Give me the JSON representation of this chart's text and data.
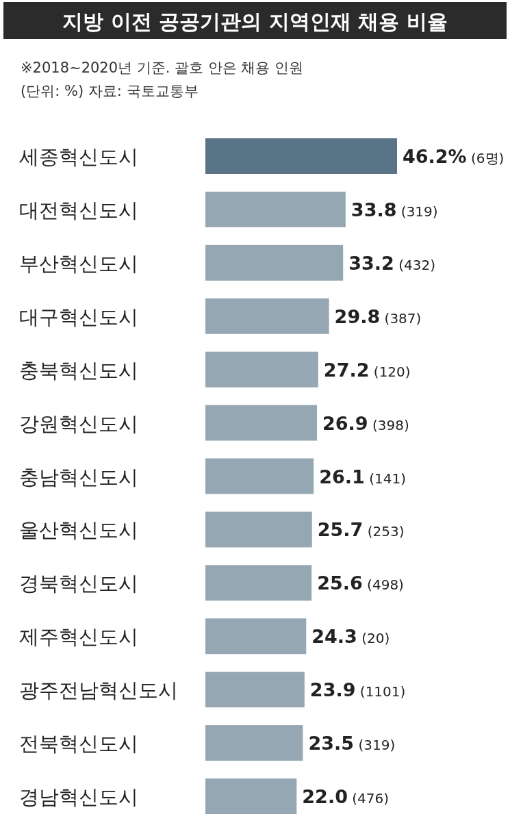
{
  "chart_data": {
    "type": "bar",
    "orientation": "horizontal",
    "title": "지방 이전 공공기관의 지역인재 채용 비율",
    "annotations": [
      "※2018~2020년 기준. 괄호 안은 채용 인원",
      "(단위: %) 자료: 국토교통부"
    ],
    "categories": [
      "세종혁신도시",
      "대전혁신도시",
      "부산혁신도시",
      "대구혁신도시",
      "충북혁신도시",
      "강원혁신도시",
      "충남혁신도시",
      "울산혁신도시",
      "경북혁신도시",
      "제주혁신도시",
      "광주전남혁신도시",
      "전북혁신도시",
      "경남혁신도시"
    ],
    "values": [
      46.2,
      33.8,
      33.2,
      29.8,
      27.2,
      26.9,
      26.1,
      25.7,
      25.6,
      24.3,
      23.9,
      23.5,
      22.0
    ],
    "colors": [
      "#587486",
      "#94a7b3",
      "#94a7b3",
      "#94a7b3",
      "#94a7b3",
      "#94a7b3",
      "#94a7b3",
      "#94a7b3",
      "#94a7b3",
      "#94a7b3",
      "#94a7b3",
      "#94a7b3",
      "#94a7b3"
    ],
    "value_labels": [
      "46.2% (6명)",
      "33.8 (319)",
      "33.2 (432)",
      "29.8 (387)",
      "27.2 (120)",
      "26.9 (398)",
      "26.1 (141)",
      "25.7 (253)",
      "25.6 (498)",
      "24.3 (20)",
      "23.9 (1101)",
      "23.5 (319)",
      "22.0 (476)"
    ]
  }
}
